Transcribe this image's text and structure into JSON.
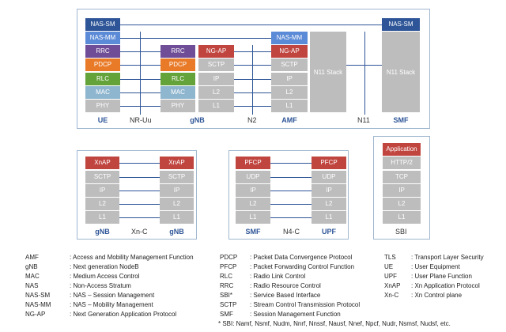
{
  "top": {
    "ue_stack": [
      "NAS-SM",
      "NAS-MM",
      "RRC",
      "PDCP",
      "RLC",
      "MAC",
      "PHY"
    ],
    "gnb_left": [
      "RRC",
      "PDCP",
      "RLC",
      "MAC",
      "PHY"
    ],
    "gnb_right": [
      "NG-AP",
      "SCTP",
      "IP",
      "L2",
      "L1"
    ],
    "amf_stack": [
      "NAS-MM",
      "NG-AP",
      "SCTP",
      "IP",
      "L2",
      "L1"
    ],
    "amf_n11": "N11 Stack",
    "smf_top": "NAS-SM",
    "smf_n11": "N11 Stack",
    "labels": {
      "ue": "UE",
      "nruu": "NR-Uu",
      "gnb": "gNB",
      "n2": "N2",
      "amf": "AMF",
      "n11": "N11",
      "smf": "SMF"
    }
  },
  "xn": {
    "left": [
      "XnAP",
      "SCTP",
      "IP",
      "L2",
      "L1"
    ],
    "right": [
      "XnAP",
      "SCTP",
      "IP",
      "L2",
      "L1"
    ],
    "labels": {
      "left": "gNB",
      "mid": "Xn-C",
      "right": "gNB"
    }
  },
  "n4": {
    "left": [
      "PFCP",
      "UDP",
      "IP",
      "L2",
      "L1"
    ],
    "right": [
      "PFCP",
      "UDP",
      "IP",
      "L2",
      "L1"
    ],
    "labels": {
      "left": "SMF",
      "mid": "N4-C",
      "right": "UPF"
    }
  },
  "sbi": {
    "stack": [
      "Application",
      "HTTP/2",
      "TCP",
      "IP",
      "L2",
      "L1"
    ],
    "label": "SBI"
  },
  "legend": {
    "col1": [
      [
        "AMF",
        ": Access and Mobility Management Function"
      ],
      [
        "gNB",
        ": Next generation NodeB"
      ],
      [
        "MAC",
        ": Medium Access Control"
      ],
      [
        "NAS",
        ": Non-Access Stratum"
      ],
      [
        "NAS-SM",
        ": NAS – Session Management"
      ],
      [
        "NAS-MM",
        ": NAS – Mobility Management"
      ],
      [
        "NG-AP",
        ": Next Generation Application Protocol"
      ]
    ],
    "col2": [
      [
        "PDCP",
        ": Packet Data Convergence Protocol"
      ],
      [
        "PFCP",
        ": Packet Forwarding Control Function"
      ],
      [
        "RLC",
        ": Radio Link Control"
      ],
      [
        "RRC",
        ": Radio Resource Control"
      ],
      [
        "SBI*",
        ": Service Based Interface"
      ],
      [
        "SCTP",
        ": Stream Control Transmission Protocol"
      ],
      [
        "SMF",
        ": Session Management Function"
      ]
    ],
    "col3": [
      [
        "TLS",
        ": Transport Layer Security"
      ],
      [
        "UE",
        ": User Equipment"
      ],
      [
        "UPF",
        ": User Plane Function"
      ],
      [
        "XnAP",
        ": Xn Application Protocol"
      ],
      [
        "Xn-C",
        ": Xn Control plane"
      ]
    ]
  },
  "footnote": "* SBI: Namf, Nsmf, Nudm, Nnrf, Nnssf, Nausf, Nnef, Npcf, Nudr, Nsmsf, Nudsf, etc.",
  "colors": {
    "navy": "#2e5597",
    "light_blue": "#5b8ad6",
    "purple": "#6f4d97",
    "orange": "#e87a28",
    "green": "#64a23a",
    "teal": "#8fb6cf",
    "gray": "#bdbdbd",
    "red": "#c0453f"
  }
}
